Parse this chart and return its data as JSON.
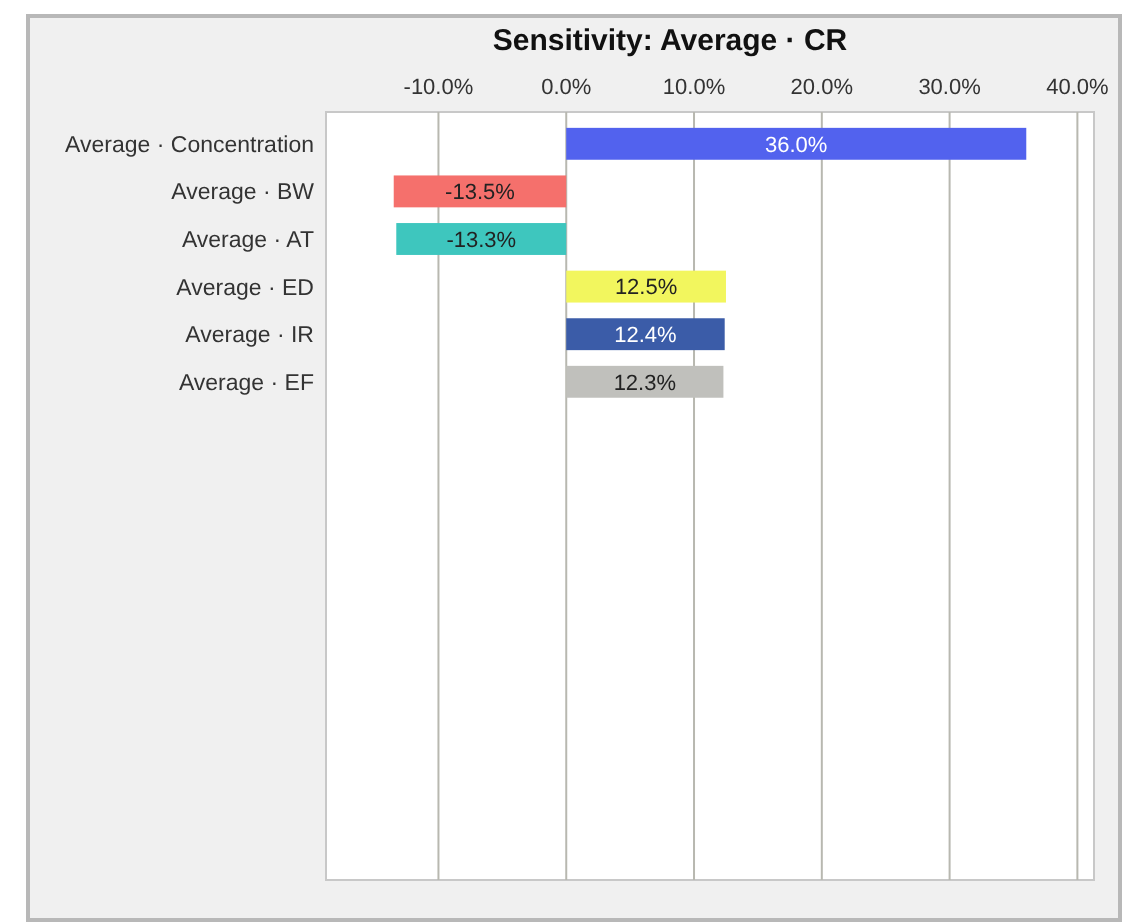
{
  "chart_data": {
    "type": "bar",
    "orientation": "horizontal",
    "title": "Sensitivity: Average · CR",
    "categories": [
      "Average · Concentration",
      "Average · BW",
      "Average · AT",
      "Average · ED",
      "Average · IR",
      "Average · EF"
    ],
    "values": [
      36.0,
      -13.5,
      -13.3,
      12.5,
      12.4,
      12.3
    ],
    "colors": [
      "#5262ee",
      "#f5706c",
      "#3ec6be",
      "#f2f65e",
      "#3b5ca8",
      "#c0c0bc"
    ],
    "value_labels": [
      "36.0%",
      "-13.5%",
      "-13.3%",
      "12.5%",
      "12.4%",
      "12.3%"
    ],
    "xlim": [
      -18.8,
      41.3
    ],
    "xticks": [
      {
        "value": -10,
        "label": "-10.0%"
      },
      {
        "value": 0,
        "label": "0.0%"
      },
      {
        "value": 10,
        "label": "10.0%"
      },
      {
        "value": 20,
        "label": "20.0%"
      },
      {
        "value": 30,
        "label": "30.0%"
      },
      {
        "value": 40,
        "label": "40.0%"
      }
    ],
    "grid": "x"
  }
}
